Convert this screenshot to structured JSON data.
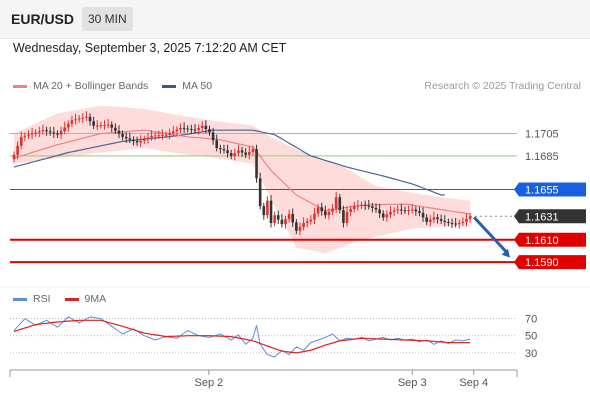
{
  "header": {
    "symbol": "EUR/USD",
    "timeframe": "30 MIN",
    "datetime": "Wednesday, September 3, 2025 7:12:20 AM CET"
  },
  "legend": {
    "items": [
      {
        "label": "MA 20 + Bollinger Bands",
        "color": "#f08080"
      },
      {
        "label": "MA 50",
        "color": "#3a5a8c"
      }
    ],
    "credit": "Research © 2025 Trading Central"
  },
  "rsi_legend": {
    "items": [
      {
        "label": "RSI",
        "color": "#5b8fd8"
      },
      {
        "label": "9MA",
        "color": "#e02020"
      }
    ]
  },
  "colors": {
    "bullish": "#e03030",
    "bearish": "#333333",
    "band_fill": "#ffd6d6",
    "ma20": "#f08080",
    "ma50": "#4a6590",
    "pivot": "#1a5fe0",
    "support": "#e00000",
    "resistance": "#8fcf6a",
    "arrow": "#2b5ea8"
  },
  "chart_data": [
    {
      "type": "candlestick",
      "title": "",
      "ylim": [
        1.1574,
        1.1735
      ],
      "x_tick_labels": [
        {
          "label": "Sep 2",
          "index": 53
        },
        {
          "label": "Sep 3",
          "index": 110
        },
        {
          "label": "Sep 4",
          "index": 127
        }
      ],
      "levels": [
        {
          "name": "resistance-2",
          "value": 1.1705,
          "label": "1.1705",
          "style": "resistance"
        },
        {
          "name": "resistance-1",
          "value": 1.1685,
          "label": "1.1685",
          "style": "resistance"
        },
        {
          "name": "pivot",
          "value": 1.1655,
          "label": "1.1655",
          "style": "pivot"
        },
        {
          "name": "last-price",
          "value": 1.1631,
          "label": "1.1631",
          "style": "last"
        },
        {
          "name": "support-1",
          "value": 1.161,
          "label": "1.1610",
          "style": "support"
        },
        {
          "name": "support-2",
          "value": 1.159,
          "label": "1.1590",
          "style": "support"
        }
      ],
      "arrow": {
        "from_value": 1.163,
        "to_value": 1.1594
      },
      "series": [
        {
          "name": "MA 20",
          "values_anchor": [
            [
              0,
              1.1683
            ],
            [
              12,
              1.1695
            ],
            [
              24,
              1.1705
            ],
            [
              36,
              1.1708
            ],
            [
              48,
              1.1702
            ],
            [
              56,
              1.17
            ],
            [
              66,
              1.1693
            ],
            [
              71,
              1.1672
            ],
            [
              78,
              1.165
            ],
            [
              86,
              1.1636
            ],
            [
              96,
              1.1641
            ],
            [
              108,
              1.1642
            ],
            [
              120,
              1.1636
            ],
            [
              126,
              1.1633
            ]
          ]
        },
        {
          "name": "MA 50",
          "values_anchor": [
            [
              0,
              1.1675
            ],
            [
              15,
              1.1688
            ],
            [
              30,
              1.1698
            ],
            [
              45,
              1.1703
            ],
            [
              55,
              1.1708
            ],
            [
              66,
              1.1708
            ],
            [
              72,
              1.1704
            ],
            [
              82,
              1.1685
            ],
            [
              92,
              1.1675
            ],
            [
              102,
              1.1667
            ],
            [
              110,
              1.166
            ],
            [
              118,
              1.165
            ]
          ]
        },
        {
          "name": "Upper Band",
          "values_anchor": [
            [
              0,
              1.1705
            ],
            [
              12,
              1.1723
            ],
            [
              24,
              1.173
            ],
            [
              36,
              1.1727
            ],
            [
              48,
              1.172
            ],
            [
              56,
              1.1716
            ],
            [
              66,
              1.1712
            ],
            [
              72,
              1.17
            ],
            [
              80,
              1.1688
            ],
            [
              90,
              1.1677
            ],
            [
              100,
              1.1658
            ],
            [
              110,
              1.1652
            ],
            [
              118,
              1.1648
            ],
            [
              126,
              1.1645
            ]
          ]
        },
        {
          "name": "Lower Band",
          "values_anchor": [
            [
              0,
              1.1678
            ],
            [
              12,
              1.1683
            ],
            [
              24,
              1.1688
            ],
            [
              36,
              1.1692
            ],
            [
              48,
              1.1686
            ],
            [
              56,
              1.1683
            ],
            [
              66,
              1.1678
            ],
            [
              72,
              1.164
            ],
            [
              78,
              1.1603
            ],
            [
              86,
              1.1598
            ],
            [
              96,
              1.161
            ],
            [
              110,
              1.162
            ],
            [
              120,
              1.1622
            ],
            [
              126,
              1.1622
            ]
          ]
        }
      ],
      "price_anchors": [
        [
          0,
          1.1686
        ],
        [
          2,
          1.1702
        ],
        [
          8,
          1.1708
        ],
        [
          12,
          1.1704
        ],
        [
          16,
          1.1717
        ],
        [
          20,
          1.172
        ],
        [
          22,
          1.1712
        ],
        [
          26,
          1.1713
        ],
        [
          30,
          1.1702
        ],
        [
          34,
          1.1697
        ],
        [
          38,
          1.1703
        ],
        [
          42,
          1.1704
        ],
        [
          46,
          1.171
        ],
        [
          50,
          1.1708
        ],
        [
          52,
          1.1712
        ],
        [
          54,
          1.1706
        ],
        [
          56,
          1.1692
        ],
        [
          58,
          1.169
        ],
        [
          60,
          1.1685
        ],
        [
          62,
          1.169
        ],
        [
          64,
          1.1686
        ],
        [
          66,
          1.1691
        ],
        [
          67,
          1.1665
        ],
        [
          68,
          1.164
        ],
        [
          69,
          1.1632
        ],
        [
          70,
          1.1645
        ],
        [
          71,
          1.1625
        ],
        [
          72,
          1.1632
        ],
        [
          74,
          1.1624
        ],
        [
          76,
          1.1633
        ],
        [
          78,
          1.1618
        ],
        [
          80,
          1.1625
        ],
        [
          82,
          1.1628
        ],
        [
          84,
          1.1639
        ],
        [
          86,
          1.1632
        ],
        [
          88,
          1.1638
        ],
        [
          89,
          1.1648
        ],
        [
          91,
          1.1625
        ],
        [
          92,
          1.1635
        ],
        [
          94,
          1.164
        ],
        [
          96,
          1.1641
        ],
        [
          98,
          1.164
        ],
        [
          100,
          1.1637
        ],
        [
          102,
          1.163
        ],
        [
          104,
          1.1635
        ],
        [
          106,
          1.1637
        ],
        [
          108,
          1.1636
        ],
        [
          110,
          1.1637
        ],
        [
          112,
          1.1634
        ],
        [
          114,
          1.1626
        ],
        [
          116,
          1.163
        ],
        [
          118,
          1.1627
        ],
        [
          120,
          1.1625
        ],
        [
          122,
          1.1624
        ],
        [
          124,
          1.1626
        ],
        [
          126,
          1.1631
        ]
      ]
    },
    {
      "type": "line",
      "title": "",
      "ylim": [
        10,
        80
      ],
      "y_ticks": [
        70,
        50,
        30
      ],
      "x_tick_labels": [
        {
          "label": "Sep 2",
          "index": 53
        },
        {
          "label": "Sep 3",
          "index": 110
        },
        {
          "label": "Sep 4",
          "index": 127
        }
      ],
      "series": [
        {
          "name": "RSI",
          "values_anchor": [
            [
              0,
              56
            ],
            [
              3,
              70
            ],
            [
              6,
              62
            ],
            [
              9,
              68
            ],
            [
              12,
              60
            ],
            [
              15,
              72
            ],
            [
              18,
              65
            ],
            [
              21,
              72
            ],
            [
              24,
              70
            ],
            [
              27,
              61
            ],
            [
              30,
              52
            ],
            [
              33,
              58
            ],
            [
              36,
              50
            ],
            [
              39,
              45
            ],
            [
              42,
              49
            ],
            [
              45,
              47
            ],
            [
              48,
              56
            ],
            [
              51,
              50
            ],
            [
              54,
              48
            ],
            [
              57,
              52
            ],
            [
              60,
              45
            ],
            [
              62,
              51
            ],
            [
              64,
              40
            ],
            [
              66,
              47
            ],
            [
              67,
              62
            ],
            [
              68,
              40
            ],
            [
              70,
              28
            ],
            [
              72,
              25
            ],
            [
              74,
              33
            ],
            [
              76,
              28
            ],
            [
              78,
              37
            ],
            [
              80,
              33
            ],
            [
              82,
              42
            ],
            [
              84,
              45
            ],
            [
              86,
              48
            ],
            [
              88,
              52
            ],
            [
              90,
              44
            ],
            [
              92,
              47
            ],
            [
              94,
              46
            ],
            [
              96,
              48
            ],
            [
              98,
              44
            ],
            [
              100,
              46
            ],
            [
              102,
              48
            ],
            [
              104,
              45
            ],
            [
              106,
              47
            ],
            [
              108,
              45
            ],
            [
              110,
              46
            ],
            [
              112,
              43
            ],
            [
              114,
              45
            ],
            [
              116,
              40
            ],
            [
              118,
              44
            ],
            [
              120,
              41
            ],
            [
              122,
              45
            ],
            [
              124,
              44
            ],
            [
              126,
              46
            ]
          ]
        },
        {
          "name": "9MA",
          "values_anchor": [
            [
              0,
              55
            ],
            [
              6,
              63
            ],
            [
              12,
              66
            ],
            [
              18,
              68
            ],
            [
              24,
              68
            ],
            [
              30,
              61
            ],
            [
              36,
              53
            ],
            [
              42,
              49
            ],
            [
              48,
              50
            ],
            [
              54,
              50
            ],
            [
              60,
              49
            ],
            [
              66,
              44
            ],
            [
              70,
              38
            ],
            [
              74,
              32
            ],
            [
              78,
              30
            ],
            [
              82,
              33
            ],
            [
              86,
              39
            ],
            [
              90,
              44
            ],
            [
              96,
              47
            ],
            [
              102,
              46
            ],
            [
              108,
              45
            ],
            [
              114,
              44
            ],
            [
              120,
              42
            ],
            [
              126,
              42
            ]
          ]
        }
      ]
    }
  ]
}
